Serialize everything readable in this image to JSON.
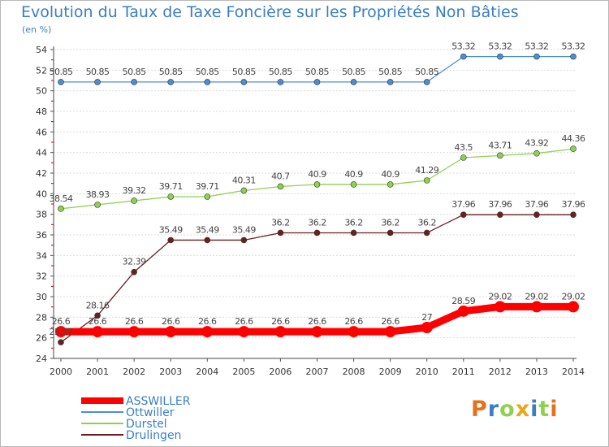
{
  "title": "Evolution du Taux de Taxe Foncière sur les Propriétés Non Bâties",
  "unit_label": "(en %)",
  "brand": "Proxiti",
  "chart_data": {
    "type": "line",
    "title": "Evolution du Taux de Taxe Foncière sur les Propriétés Non Bâties",
    "ylabel": "(en %)",
    "xlabel": "",
    "categories": [
      "2000",
      "2001",
      "2002",
      "2003",
      "2004",
      "2005",
      "2006",
      "2007",
      "2008",
      "2009",
      "2010",
      "2011",
      "2012",
      "2013",
      "2014"
    ],
    "ylim": [
      24,
      54
    ],
    "yticks": [
      24,
      26,
      28,
      30,
      32,
      34,
      36,
      38,
      40,
      42,
      44,
      46,
      48,
      50,
      52,
      54
    ],
    "grid": "horizontal",
    "legend_position": "bottom-left",
    "series": [
      {
        "name": "ASSWILLER",
        "color": "#ff0000",
        "values": [
          26.6,
          26.6,
          26.6,
          26.6,
          26.6,
          26.6,
          26.6,
          26.6,
          26.6,
          26.6,
          27,
          28.59,
          29.02,
          29.02,
          29.02
        ],
        "labels": [
          "26.6",
          "26.6",
          "26.6",
          "26.6",
          "26.6",
          "26.6",
          "26.6",
          "26.6",
          "26.6",
          "26.6",
          "27",
          "28.59",
          "29.02",
          "29.02",
          "29.02"
        ]
      },
      {
        "name": "Ottwiller",
        "color": "#4a8fd4",
        "values": [
          50.85,
          50.85,
          50.85,
          50.85,
          50.85,
          50.85,
          50.85,
          50.85,
          50.85,
          50.85,
          50.85,
          53.32,
          53.32,
          53.32,
          53.32
        ],
        "labels": [
          "50.85",
          "50.85",
          "50.85",
          "50.85",
          "50.85",
          "50.85",
          "50.85",
          "50.85",
          "50.85",
          "50.85",
          "50.85",
          "53.32",
          "53.32",
          "53.32",
          "53.32"
        ]
      },
      {
        "name": "Durstel",
        "color": "#8fd14f",
        "values": [
          38.54,
          38.93,
          39.32,
          39.71,
          39.71,
          40.31,
          40.7,
          40.9,
          40.9,
          40.9,
          41.29,
          43.5,
          43.71,
          43.92,
          44.36
        ],
        "labels": [
          "38.54",
          "38.93",
          "39.32",
          "39.71",
          "39.71",
          "40.31",
          "40.7",
          "40.9",
          "40.9",
          "40.9",
          "41.29",
          "43.5",
          "43.71",
          "43.92",
          "44.36"
        ]
      },
      {
        "name": "Drulingen",
        "color": "#6b1f1f",
        "values": [
          25.57,
          28.16,
          32.39,
          35.49,
          35.49,
          35.49,
          36.2,
          36.2,
          36.2,
          36.2,
          36.2,
          37.96,
          37.96,
          37.96,
          37.96
        ],
        "labels": [
          "25.57",
          "28.16",
          "32.39",
          "35.49",
          "35.49",
          "35.49",
          "36.2",
          "36.2",
          "36.2",
          "36.2",
          "36.2",
          "37.96",
          "37.96",
          "37.96",
          "37.96"
        ]
      }
    ]
  }
}
